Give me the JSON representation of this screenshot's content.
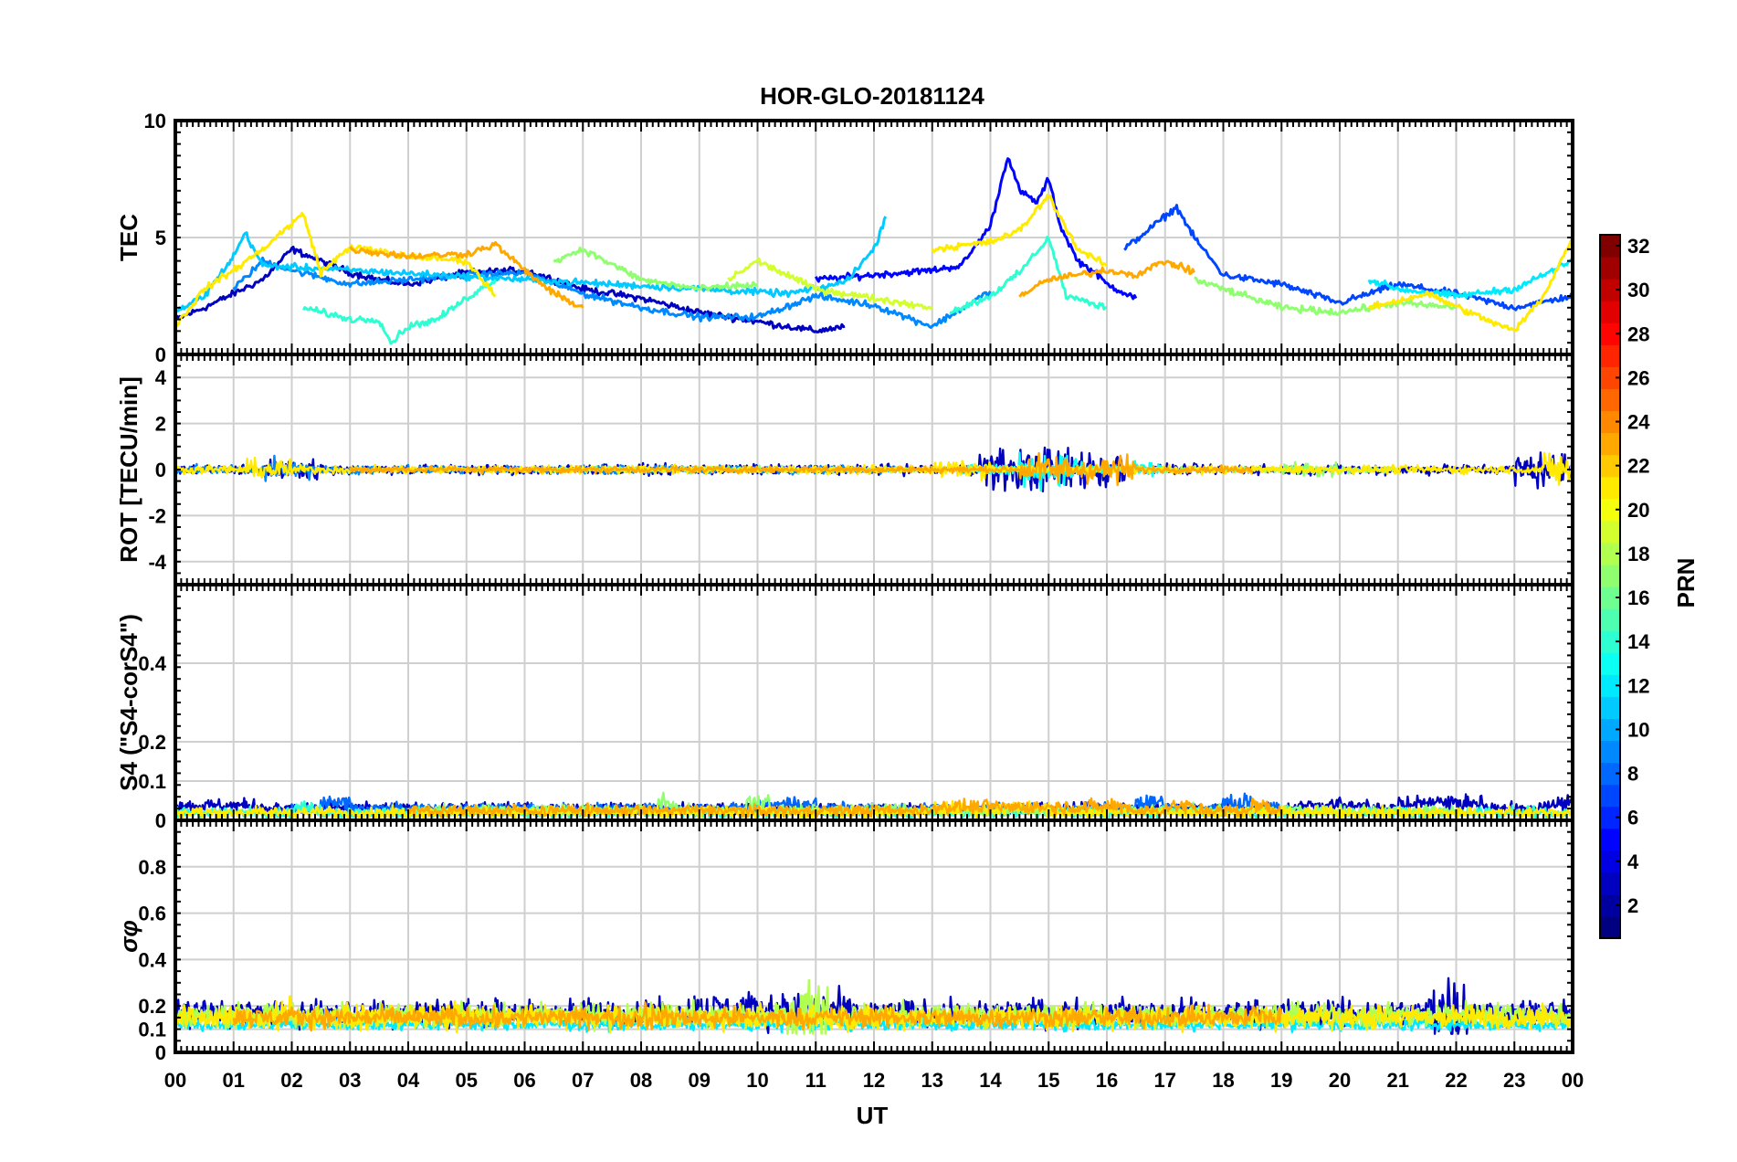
{
  "chart_data": {
    "type": "line",
    "title": "HOR-GLO-20181124",
    "xlabel": "UT",
    "x_ticks": [
      "00",
      "01",
      "02",
      "03",
      "04",
      "05",
      "06",
      "07",
      "08",
      "09",
      "10",
      "11",
      "12",
      "13",
      "14",
      "15",
      "16",
      "17",
      "18",
      "19",
      "20",
      "21",
      "22",
      "23",
      "00"
    ],
    "xlim": [
      0,
      24
    ],
    "colorbar": {
      "label": "PRN",
      "range": [
        1,
        32
      ],
      "ticks": [
        2,
        4,
        6,
        8,
        10,
        12,
        14,
        16,
        18,
        20,
        22,
        24,
        26,
        28,
        30,
        32
      ],
      "colormap": "jet"
    },
    "panels": [
      {
        "id": "tec",
        "ylabel": "TEC",
        "ylim": [
          0,
          10
        ],
        "yticks": [
          0,
          5,
          10
        ],
        "series": [
          {
            "prn": 3,
            "t": [
              0,
              0.5,
              1,
              1.5,
              2,
              2.5,
              3,
              3.5,
              4,
              5,
              6,
              7,
              8,
              9,
              10,
              11,
              11.5
            ],
            "v": [
              1.5,
              2.0,
              2.6,
              3.2,
              4.5,
              4.0,
              3.5,
              3.2,
              3.0,
              3.5,
              3.6,
              2.8,
              2.4,
              1.8,
              1.4,
              1.0,
              1.2
            ]
          },
          {
            "prn": 5,
            "t": [
              11,
              12,
              13,
              13.5,
              14,
              14.3,
              14.5,
              14.8,
              15,
              15.2,
              15.5,
              15.8,
              16,
              16.5
            ],
            "v": [
              3.2,
              3.4,
              3.6,
              3.8,
              5.5,
              8.5,
              7.0,
              6.5,
              7.5,
              5.5,
              4.0,
              3.5,
              3.0,
              2.4
            ]
          },
          {
            "prn": 7,
            "t": [
              16.3,
              16.8,
              17.2,
              17.5,
              18,
              19,
              20,
              21,
              22,
              23,
              24
            ],
            "v": [
              4.5,
              5.5,
              6.3,
              5.0,
              3.4,
              3.0,
              2.2,
              3.0,
              2.6,
              2.0,
              2.5
            ]
          },
          {
            "prn": 9,
            "t": [
              1,
              1.5,
              2,
              3,
              4,
              5,
              6,
              7,
              8,
              9,
              10,
              11,
              12,
              13,
              14
            ],
            "v": [
              2.8,
              4.0,
              3.6,
              3.0,
              3.2,
              3.4,
              3.5,
              2.6,
              2.0,
              1.6,
              1.6,
              2.5,
              2.1,
              1.2,
              2.7
            ]
          },
          {
            "prn": 11,
            "t": [
              0,
              0.5,
              1,
              1.2,
              1.5,
              10.5,
              11,
              11.5,
              12,
              12.2
            ],
            "v": [
              1.8,
              2.5,
              4.2,
              5.2,
              3.8,
              2.6,
              2.8,
              3.1,
              4.5,
              5.9
            ]
          },
          {
            "prn": 12,
            "t": [
              20.5,
              21,
              22,
              23,
              23.5,
              24
            ],
            "v": [
              3.2,
              2.8,
              2.5,
              2.8,
              3.4,
              4.0
            ]
          },
          {
            "prn": 14,
            "t": [
              2.2,
              3,
              3.5,
              3.7,
              4,
              4.5,
              5,
              5.5
            ],
            "v": [
              2.0,
              1.5,
              1.5,
              0.5,
              1.2,
              1.5,
              2.4,
              3.2
            ]
          },
          {
            "prn": 14,
            "t": [
              13.3,
              14,
              14.5,
              15,
              15.3,
              16
            ],
            "v": [
              1.8,
              2.5,
              3.5,
              5.0,
              2.5,
              2.0
            ]
          },
          {
            "prn": 17,
            "t": [
              6.5,
              7,
              8,
              9,
              10
            ],
            "v": [
              4.0,
              4.5,
              3.2,
              2.8,
              3.0
            ]
          },
          {
            "prn": 17,
            "t": [
              17.5,
              18,
              19,
              20,
              21,
              22
            ],
            "v": [
              3.2,
              2.8,
              2.0,
              1.8,
              2.2,
              2.0
            ]
          },
          {
            "prn": 19,
            "t": [
              9.5,
              10,
              10.5,
              11,
              12,
              13
            ],
            "v": [
              3.2,
              4.0,
              3.4,
              2.8,
              2.4,
              2.0
            ]
          },
          {
            "prn": 21,
            "t": [
              0,
              0.5,
              1,
              1.5,
              2,
              2.2,
              2.5,
              3,
              4,
              5,
              5.5
            ],
            "v": [
              1.2,
              2.8,
              3.6,
              4.5,
              5.6,
              6.0,
              3.5,
              4.6,
              4.2,
              4.0,
              2.5
            ]
          },
          {
            "prn": 21,
            "t": [
              13,
              14,
              14.5,
              15,
              15.5,
              16
            ],
            "v": [
              4.5,
              4.8,
              5.3,
              6.8,
              4.5,
              3.8
            ]
          },
          {
            "prn": 21,
            "t": [
              20.5,
              21.5,
              22.5,
              23,
              23.5,
              24
            ],
            "v": [
              2.0,
              2.6,
              1.5,
              1.0,
              2.5,
              5.0
            ]
          },
          {
            "prn": 23,
            "t": [
              3,
              4,
              5,
              5.5,
              6,
              6.5,
              7
            ],
            "v": [
              4.5,
              4.2,
              4.3,
              4.7,
              3.6,
              2.6,
              2.0
            ]
          },
          {
            "prn": 23,
            "t": [
              14.5,
              15,
              15.5,
              16,
              16.5,
              17,
              17.5
            ],
            "v": [
              2.5,
              3.2,
              3.4,
              3.6,
              3.4,
              4.0,
              3.5
            ]
          }
        ]
      },
      {
        "id": "rot",
        "ylabel": "ROT [TECU/min]",
        "ylim": [
          -5,
          5
        ],
        "yticks": [
          -4,
          -2,
          0,
          2,
          4
        ],
        "noise": [
          {
            "prn": 3,
            "from": 0.0,
            "to": 24,
            "base": 0.15,
            "bursts": [
              [
                1.5,
                2.5,
                0.5
              ],
              [
                13.8,
                16.3,
                1.1
              ],
              [
                23,
                24,
                0.9
              ]
            ]
          },
          {
            "prn": 9,
            "from": 0.0,
            "to": 12.5,
            "base": 0.12,
            "bursts": [
              [
                1.5,
                2.3,
                0.5
              ]
            ]
          },
          {
            "prn": 13,
            "from": 13.5,
            "to": 17,
            "base": 0.2,
            "bursts": [
              [
                14.5,
                15.5,
                0.8
              ]
            ]
          },
          {
            "prn": 17,
            "from": 6.5,
            "to": 21,
            "base": 0.1,
            "bursts": [
              [
                19,
                20,
                0.4
              ]
            ]
          },
          {
            "prn": 21,
            "from": 0.0,
            "to": 24,
            "base": 0.12,
            "bursts": [
              [
                1.2,
                2.0,
                0.5
              ],
              [
                13,
                14,
                0.4
              ],
              [
                23.5,
                24,
                0.8
              ]
            ]
          },
          {
            "prn": 23,
            "from": 3.0,
            "to": 18.5,
            "base": 0.1,
            "bursts": [
              [
                14.5,
                16.5,
                0.7
              ]
            ]
          }
        ]
      },
      {
        "id": "s4",
        "ylabel": "S4 (\"S4-corS4\")",
        "ylim": [
          0,
          0.6
        ],
        "yticks": [
          0,
          0.1,
          0.2,
          0.4
        ],
        "noise": [
          {
            "prn": 3,
            "from": 0.0,
            "to": 24,
            "base": 0.03,
            "bursts": [
              [
                0,
                1.5,
                0.05
              ],
              [
                19.3,
                20.5,
                0.06
              ],
              [
                21,
                22.5,
                0.1
              ],
              [
                23.5,
                24,
                0.08
              ]
            ]
          },
          {
            "prn": 8,
            "from": 2.0,
            "to": 19,
            "base": 0.03,
            "bursts": [
              [
                2.5,
                3,
                0.1
              ],
              [
                10,
                11,
                0.08
              ],
              [
                16.5,
                17,
                0.12
              ],
              [
                18,
                18.5,
                0.1
              ]
            ]
          },
          {
            "prn": 14,
            "from": 0.0,
            "to": 24,
            "base": 0.02,
            "bursts": [
              [
                2,
                2.5,
                0.07
              ]
            ]
          },
          {
            "prn": 17,
            "from": 4.0,
            "to": 22,
            "base": 0.025,
            "bursts": [
              [
                8.3,
                8.6,
                0.1
              ],
              [
                9.8,
                10.2,
                0.12
              ]
            ]
          },
          {
            "prn": 21,
            "from": 0.0,
            "to": 24,
            "base": 0.02,
            "bursts": [
              [
                13,
                15,
                0.07
              ]
            ]
          },
          {
            "prn": 23,
            "from": 4.0,
            "to": 19,
            "base": 0.025,
            "bursts": [
              [
                13,
                16,
                0.06
              ],
              [
                16,
                16.4,
                0.08
              ],
              [
                17,
                17.5,
                0.07
              ],
              [
                18.5,
                18.8,
                0.09
              ]
            ]
          }
        ]
      },
      {
        "id": "sigma",
        "ylabel": "σφ",
        "ylim": [
          0,
          1
        ],
        "yticks": [
          0,
          0.1,
          0.2,
          0.4,
          0.6,
          0.8
        ],
        "noise": [
          {
            "prn": 3,
            "from": 0.0,
            "to": 24,
            "base": 0.17,
            "amp": 0.07,
            "bursts": [
              [
                8.8,
                11.5,
                0.15
              ],
              [
                21.5,
                22.2,
                0.3
              ]
            ]
          },
          {
            "prn": 12,
            "from": 0.0,
            "to": 24,
            "base": 0.12,
            "amp": 0.03,
            "bursts": []
          },
          {
            "prn": 18,
            "from": 0.0,
            "to": 24,
            "base": 0.16,
            "amp": 0.06,
            "bursts": [
              [
                10.5,
                11.2,
                0.25
              ],
              [
                22,
                23,
                0.1
              ]
            ]
          },
          {
            "prn": 21,
            "from": 0.0,
            "to": 24,
            "base": 0.15,
            "amp": 0.06,
            "bursts": [
              [
                1.7,
                2.0,
                0.2
              ],
              [
                4.8,
                4.9,
                0.2
              ]
            ]
          },
          {
            "prn": 23,
            "from": 1.0,
            "to": 19,
            "base": 0.15,
            "amp": 0.05,
            "bursts": [
              [
                8,
                8.2,
                0.15
              ],
              [
                18.5,
                18.7,
                0.15
              ]
            ]
          }
        ]
      }
    ]
  }
}
